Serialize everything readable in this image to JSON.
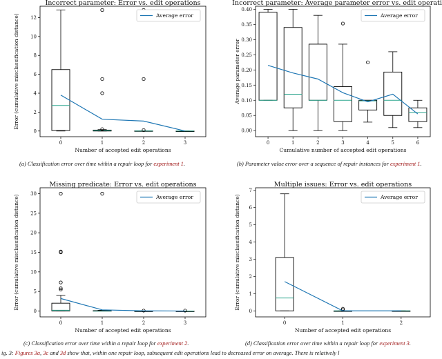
{
  "chart_data": [
    {
      "type": "box",
      "title": "Incorrect parameter: Error vs. edit operations",
      "xlabel": "Number of accepted edit operations",
      "ylabel": "Error (cumulative misclassification distance)",
      "categories": [
        "0",
        "1",
        "2",
        "3"
      ],
      "ylim": [
        -0.6,
        13.2
      ],
      "yticks": [
        "0",
        "2",
        "4",
        "6",
        "8",
        "10",
        "12"
      ],
      "boxes": [
        {
          "q1": 0.05,
          "median": 2.7,
          "q3": 6.5,
          "whislo": 0.0,
          "whishi": 12.8,
          "fliers": []
        },
        {
          "q1": 0.0,
          "median": 0.05,
          "q3": 0.1,
          "whislo": 0.0,
          "whishi": 0.15,
          "fliers": [
            0.2,
            4.0,
            5.5,
            12.8
          ]
        },
        {
          "q1": 0.0,
          "median": 0.0,
          "q3": 0.02,
          "whislo": 0.0,
          "whishi": 0.02,
          "fliers": [
            0.1,
            5.5,
            12.8
          ]
        },
        {
          "q1": 0.0,
          "median": 0.0,
          "q3": 0.0,
          "whislo": 0.0,
          "whishi": 0.0,
          "fliers": []
        }
      ],
      "series": [
        {
          "name": "Average error",
          "values": [
            3.8,
            1.25,
            1.05,
            0.0
          ]
        }
      ],
      "legend": "top-right",
      "caption": {
        "label": "(a) Classification error over time within a repair loop for ",
        "ref": "experiment 1",
        "end": "."
      }
    },
    {
      "type": "box",
      "title": "Incorrect parameter: Average parameter error vs. edit operations",
      "xlabel": "Cumulative number of accepted edit operations",
      "ylabel": "Average parameter error",
      "categories": [
        "0",
        "1",
        "2",
        "3",
        "4",
        "5",
        "6"
      ],
      "ylim": [
        -0.02,
        0.41
      ],
      "yticks": [
        "0.00",
        "0.05",
        "0.10",
        "0.15",
        "0.20",
        "0.25",
        "0.30",
        "0.35",
        "0.40"
      ],
      "boxes": [
        {
          "q1": 0.1,
          "median": 0.1,
          "q3": 0.39,
          "whislo": 0.1,
          "whishi": 0.4,
          "fliers": []
        },
        {
          "q1": 0.075,
          "median": 0.12,
          "q3": 0.34,
          "whislo": 0.0,
          "whishi": 0.4,
          "fliers": []
        },
        {
          "q1": 0.1,
          "median": 0.1,
          "q3": 0.285,
          "whislo": 0.0,
          "whishi": 0.38,
          "fliers": []
        },
        {
          "q1": 0.03,
          "median": 0.1,
          "q3": 0.145,
          "whislo": 0.0,
          "whishi": 0.285,
          "fliers": [
            0.353
          ]
        },
        {
          "q1": 0.068,
          "median": 0.098,
          "q3": 0.1,
          "whislo": 0.028,
          "whishi": 0.1,
          "fliers": [
            0.225
          ]
        },
        {
          "q1": 0.05,
          "median": 0.1,
          "q3": 0.193,
          "whislo": 0.01,
          "whishi": 0.26,
          "fliers": []
        },
        {
          "q1": 0.03,
          "median": 0.06,
          "q3": 0.075,
          "whislo": 0.01,
          "whishi": 0.1,
          "fliers": []
        }
      ],
      "series": [
        {
          "name": "Average error",
          "values": [
            0.215,
            0.19,
            0.17,
            0.125,
            0.095,
            0.12,
            0.055
          ]
        }
      ],
      "legend": "top-right",
      "caption": {
        "label": "(b) Parameter value error over a sequence of repair instances for ",
        "ref": "experiment 1",
        "end": "."
      }
    },
    {
      "type": "box",
      "title": "Missing predicate: Error vs. edit operations",
      "xlabel": "Number of accepted edit operations",
      "ylabel": "Error (cumulative misclassification distance)",
      "categories": [
        "0",
        "1",
        "2",
        "3"
      ],
      "ylim": [
        -1.5,
        31.5
      ],
      "yticks": [
        "0",
        "5",
        "10",
        "15",
        "20",
        "25",
        "30"
      ],
      "boxes": [
        {
          "q1": 0.0,
          "median": 0.2,
          "q3": 2.0,
          "whislo": 0.0,
          "whishi": 4.0,
          "fliers": [
            5.5,
            5.8,
            7.3,
            15.0,
            15.2,
            30.0
          ]
        },
        {
          "q1": 0.0,
          "median": 0.0,
          "q3": 0.1,
          "whislo": 0.0,
          "whishi": 0.2,
          "fliers": [
            30.0
          ]
        },
        {
          "q1": 0.0,
          "median": 0.0,
          "q3": 0.0,
          "whislo": 0.0,
          "whishi": 0.0,
          "fliers": [
            0.1
          ]
        },
        {
          "q1": 0.0,
          "median": 0.0,
          "q3": 0.0,
          "whislo": 0.0,
          "whishi": 0.0,
          "fliers": [
            0.1
          ]
        }
      ],
      "series": [
        {
          "name": "Average error",
          "values": [
            3.2,
            0.3,
            0.05,
            0.0
          ]
        }
      ],
      "legend": "top-right",
      "caption": {
        "label": "(c) Classification error over time within a repair loop for ",
        "ref": "experiment 2",
        "end": "."
      }
    },
    {
      "type": "box",
      "title": "Multiple issues: Error vs. edit operations",
      "xlabel": "Number of accepted edit operations",
      "ylabel": "Error (cumulative misclassification distance)",
      "categories": [
        "0",
        "1",
        "2"
      ],
      "ylim": [
        -0.35,
        7.15
      ],
      "yticks": [
        "0",
        "1",
        "2",
        "3",
        "4",
        "5",
        "6",
        "7"
      ],
      "boxes": [
        {
          "q1": 0.0,
          "median": 0.75,
          "q3": 3.1,
          "whislo": 0.0,
          "whishi": 6.8,
          "fliers": []
        },
        {
          "q1": 0.0,
          "median": 0.0,
          "q3": 0.0,
          "whislo": 0.0,
          "whishi": 0.0,
          "fliers": [
            0.05,
            0.12
          ]
        },
        {
          "q1": 0.0,
          "median": 0.0,
          "q3": 0.0,
          "whislo": 0.0,
          "whishi": 0.0,
          "fliers": []
        }
      ],
      "series": [
        {
          "name": "Average error",
          "values": [
            1.7,
            0.0,
            0.0
          ]
        }
      ],
      "legend": "top-right",
      "caption": {
        "label": "(d) Classification error over time within a repair loop for ",
        "ref": "experiment 3",
        "end": "."
      }
    }
  ],
  "footer": {
    "prefix": "ig. 3: ",
    "ref1": "Figures 3a",
    "sep1": ", ",
    "ref2": "3c",
    "sep2": " and ",
    "ref3": "3d",
    "rest": " show that, within one repair loop, subsequent edit operations lead to decreased error on average. There is relatively l"
  }
}
